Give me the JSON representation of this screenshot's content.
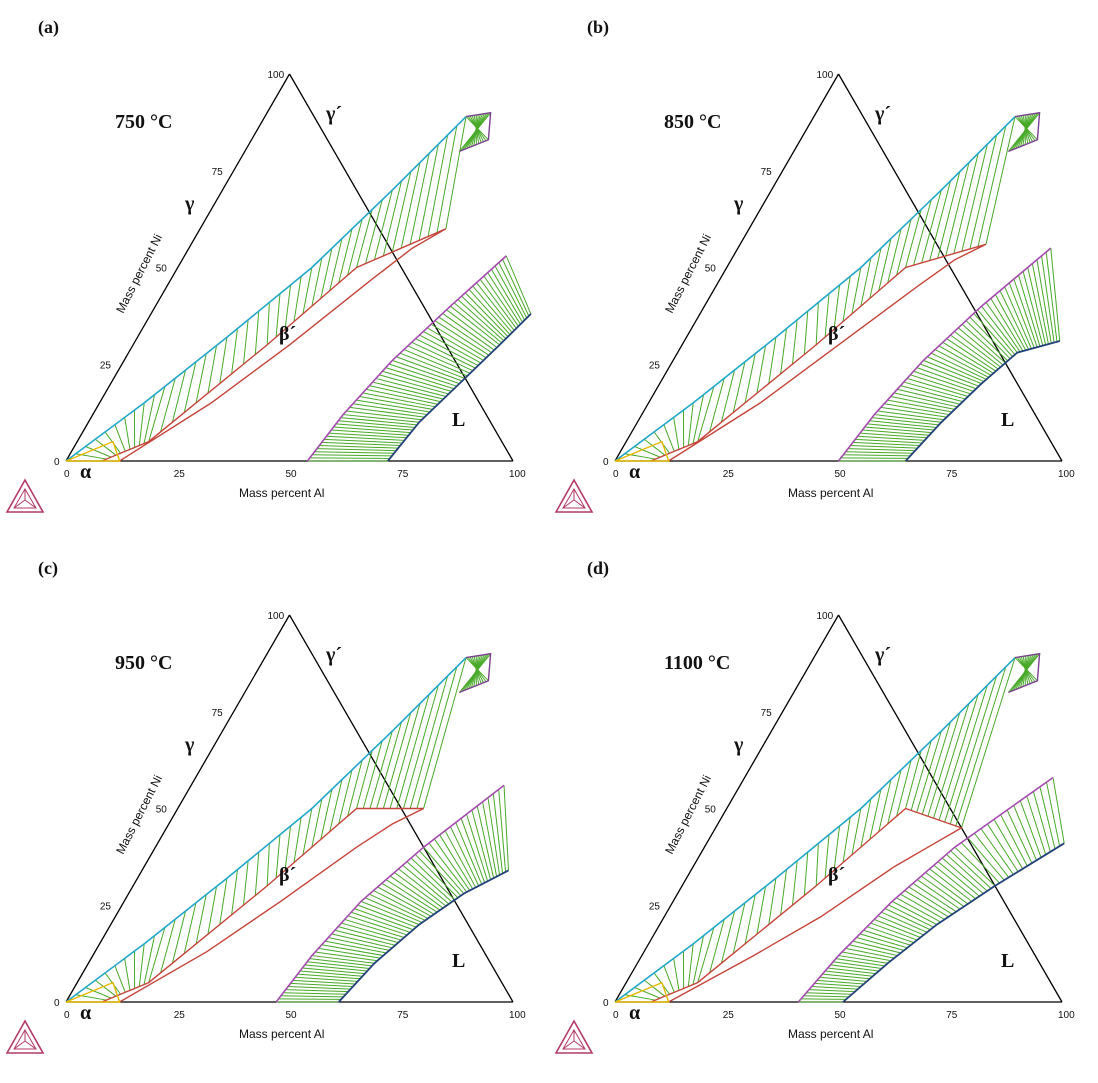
{
  "chart_data": [
    {
      "type": "ternary-phase-diagram",
      "panel_label": "(a)",
      "title": "750 °C",
      "xlabel": "Mass percent Al",
      "ylabel": "Mass percent Ni",
      "ticks": [
        "0",
        "25",
        "50",
        "75",
        "100"
      ],
      "phase_labels": {
        "gamma": "γ",
        "gamma_prime": "γ´",
        "beta_prime": "β´",
        "liquid": "L",
        "alpha": "α"
      },
      "regions": {
        "gamma_boundary": [
          [
            0,
            0
          ],
          [
            10,
            15
          ],
          [
            20,
            32
          ],
          [
            30,
            50
          ],
          [
            38,
            70
          ],
          [
            45,
            89
          ]
        ],
        "gamma_prime_strip": [
          [
            45,
            89
          ],
          [
            50,
            90
          ],
          [
            53,
            83
          ],
          [
            48,
            80
          ]
        ],
        "beta_region": [
          [
            8,
            0
          ],
          [
            16,
            5
          ],
          [
            30,
            30
          ],
          [
            40,
            50
          ],
          [
            55,
            60
          ],
          [
            50,
            55
          ],
          [
            45,
            47
          ],
          [
            35,
            30
          ],
          [
            25,
            15
          ],
          [
            12,
            0
          ]
        ],
        "liquid_beta_boundary": [
          [
            54,
            0
          ],
          [
            56,
            12
          ],
          [
            60,
            26
          ],
          [
            66,
            40
          ],
          [
            72,
            53
          ]
        ],
        "liquid_boundary": [
          [
            72,
            0
          ],
          [
            74,
            10
          ],
          [
            78,
            20
          ],
          [
            82,
            30
          ],
          [
            85,
            38
          ]
        ]
      }
    },
    {
      "type": "ternary-phase-diagram",
      "panel_label": "(b)",
      "title": "850 °C",
      "xlabel": "Mass percent Al",
      "ylabel": "Mass percent Ni",
      "ticks": [
        "0",
        "25",
        "50",
        "75",
        "100"
      ],
      "phase_labels": {
        "gamma": "γ",
        "gamma_prime": "γ´",
        "beta_prime": "β´",
        "liquid": "L",
        "alpha": "α"
      },
      "regions": {
        "gamma_boundary": [
          [
            0,
            0
          ],
          [
            10,
            15
          ],
          [
            20,
            32
          ],
          [
            30,
            50
          ],
          [
            38,
            70
          ],
          [
            45,
            89
          ]
        ],
        "gamma_prime_strip": [
          [
            45,
            89
          ],
          [
            50,
            90
          ],
          [
            53,
            83
          ],
          [
            48,
            80
          ]
        ],
        "beta_region": [
          [
            8,
            0
          ],
          [
            16,
            5
          ],
          [
            30,
            30
          ],
          [
            40,
            50
          ],
          [
            55,
            56
          ],
          [
            50,
            52
          ],
          [
            45,
            45
          ],
          [
            35,
            30
          ],
          [
            25,
            15
          ],
          [
            12,
            0
          ]
        ],
        "liquid_beta_boundary": [
          [
            50,
            0
          ],
          [
            52,
            12
          ],
          [
            56,
            26
          ],
          [
            62,
            40
          ],
          [
            70,
            55
          ]
        ],
        "liquid_boundary": [
          [
            65,
            0
          ],
          [
            68,
            10
          ],
          [
            72,
            20
          ],
          [
            76,
            28
          ],
          [
            84,
            31
          ]
        ]
      }
    },
    {
      "type": "ternary-phase-diagram",
      "panel_label": "(c)",
      "title": "950 °C",
      "xlabel": "Mass percent Al",
      "ylabel": "Mass percent Ni",
      "ticks": [
        "0",
        "25",
        "50",
        "75",
        "100"
      ],
      "phase_labels": {
        "gamma": "γ",
        "gamma_prime": "γ´",
        "beta_prime": "β´",
        "liquid": "L",
        "alpha": "α"
      },
      "regions": {
        "gamma_boundary": [
          [
            0,
            0
          ],
          [
            10,
            15
          ],
          [
            20,
            32
          ],
          [
            30,
            50
          ],
          [
            38,
            70
          ],
          [
            45,
            89
          ]
        ],
        "gamma_prime_strip": [
          [
            45,
            89
          ],
          [
            50,
            90
          ],
          [
            53,
            83
          ],
          [
            48,
            80
          ]
        ],
        "beta_region": [
          [
            8,
            0
          ],
          [
            16,
            5
          ],
          [
            30,
            30
          ],
          [
            40,
            50
          ],
          [
            55,
            50
          ],
          [
            50,
            46
          ],
          [
            45,
            40
          ],
          [
            35,
            26
          ],
          [
            25,
            13
          ],
          [
            12,
            0
          ]
        ],
        "liquid_beta_boundary": [
          [
            47,
            0
          ],
          [
            49,
            12
          ],
          [
            53,
            26
          ],
          [
            60,
            40
          ],
          [
            70,
            56
          ]
        ],
        "liquid_boundary": [
          [
            61,
            0
          ],
          [
            64,
            10
          ],
          [
            69,
            20
          ],
          [
            75,
            28
          ],
          [
            82,
            34
          ]
        ]
      }
    },
    {
      "type": "ternary-phase-diagram",
      "panel_label": "(d)",
      "title": "1100 °C",
      "xlabel": "Mass percent Al",
      "ylabel": "Mass percent Ni",
      "ticks": [
        "0",
        "25",
        "50",
        "75",
        "100"
      ],
      "phase_labels": {
        "gamma": "γ",
        "gamma_prime": "γ´",
        "beta_prime": "β´",
        "liquid": "L",
        "alpha": "α"
      },
      "regions": {
        "gamma_boundary": [
          [
            0,
            0
          ],
          [
            10,
            15
          ],
          [
            20,
            32
          ],
          [
            30,
            50
          ],
          [
            38,
            70
          ],
          [
            45,
            89
          ]
        ],
        "gamma_prime_strip": [
          [
            45,
            89
          ],
          [
            50,
            90
          ],
          [
            53,
            83
          ],
          [
            48,
            80
          ]
        ],
        "beta_region": [
          [
            8,
            0
          ],
          [
            16,
            5
          ],
          [
            30,
            30
          ],
          [
            40,
            50
          ],
          [
            55,
            45
          ],
          [
            50,
            40
          ],
          [
            45,
            35
          ],
          [
            35,
            22
          ],
          [
            25,
            12
          ],
          [
            12,
            0
          ]
        ],
        "liquid_beta_boundary": [
          [
            41,
            0
          ],
          [
            44,
            12
          ],
          [
            49,
            26
          ],
          [
            56,
            40
          ],
          [
            69,
            58
          ]
        ],
        "liquid_boundary": [
          [
            51,
            0
          ],
          [
            56,
            10
          ],
          [
            62,
            20
          ],
          [
            70,
            30
          ],
          [
            80,
            41
          ]
        ]
      }
    }
  ]
}
